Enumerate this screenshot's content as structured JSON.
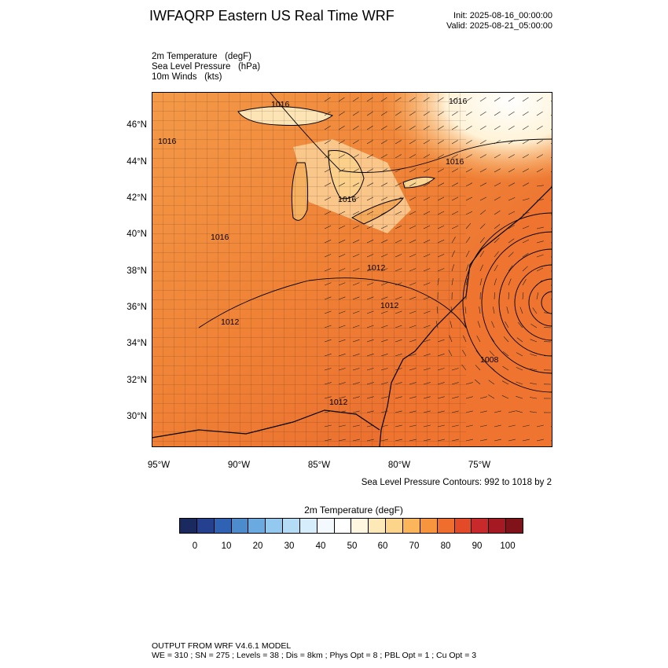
{
  "title": "IWFAQRP Eastern US Real Time WRF",
  "init_label": "Init: 2025-08-16_00:00:00",
  "valid_label": "Valid: 2025-08-21_05:00:00",
  "fields": {
    "line1": "2m Temperature   (degF)",
    "line2": "Sea Level Pressure   (hPa)",
    "line3": "10m Winds   (kts)"
  },
  "lat_labels": [
    "46°N",
    "44°N",
    "42°N",
    "40°N",
    "38°N",
    "36°N",
    "34°N",
    "32°N",
    "30°N"
  ],
  "lon_labels": [
    "95°W",
    "90°W",
    "85°W",
    "80°W",
    "75°W"
  ],
  "isobar_labels": [
    "1016",
    "1016",
    "1016",
    "1016",
    "1016",
    "1016",
    "1012",
    "1012",
    "1012",
    "1012",
    "1008"
  ],
  "contour_note": "Sea Level Pressure Contours: 992 to 1018 by 2",
  "colorbar": {
    "title": "2m Temperature  (degF)",
    "colors": [
      "#1a2a5e",
      "#24408f",
      "#2f62b2",
      "#4c8ccd",
      "#6aaae0",
      "#93c9ef",
      "#b4dcf4",
      "#d6eefb",
      "#f3f9fd",
      "#ffffff",
      "#fff7e0",
      "#fde9b7",
      "#fdd58a",
      "#fbb55a",
      "#f7953f",
      "#ef6e2d",
      "#e24a28",
      "#c8292a",
      "#a51a22",
      "#801219"
    ],
    "tick_labels": [
      "0",
      "10",
      "20",
      "30",
      "40",
      "50",
      "60",
      "70",
      "80",
      "90",
      "100"
    ]
  },
  "footer": {
    "line1": "OUTPUT FROM WRF V4.6.1 MODEL",
    "line2": "WE = 310 ; SN = 275 ; Levels = 38 ; Dis = 8km ; Phys Opt = 8 ; PBL Opt = 1 ; Cu Opt = 3"
  }
}
